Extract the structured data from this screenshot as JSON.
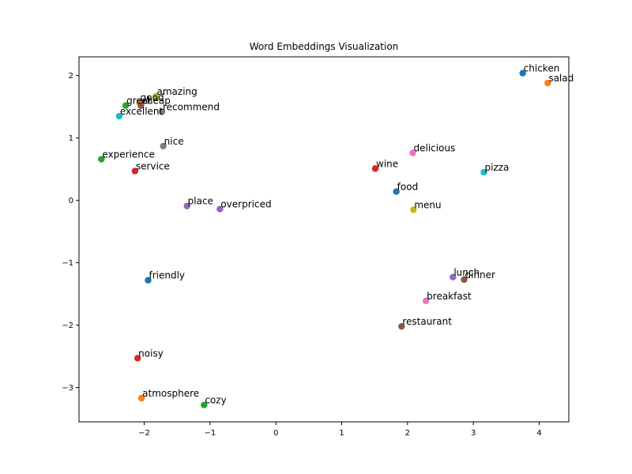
{
  "chart_data": {
    "type": "scatter",
    "title": "Word Embeddings Visualization",
    "xlabel": "",
    "ylabel": "",
    "xlim": [
      -2.99,
      4.45
    ],
    "ylim": [
      -3.55,
      2.3
    ],
    "xticks": [
      -2,
      -1,
      0,
      1,
      2,
      3,
      4
    ],
    "yticks": [
      -3,
      -2,
      -1,
      0,
      1,
      2
    ],
    "grid": false,
    "points": [
      {
        "label": "amazing",
        "x": -1.82,
        "y": 1.67,
        "color": "#bcbd22"
      },
      {
        "label": "good",
        "x": -2.07,
        "y": 1.57,
        "color": "#ff7f0e"
      },
      {
        "label": "cheap",
        "x": -2.05,
        "y": 1.52,
        "color": "#8c564b"
      },
      {
        "label": "great",
        "x": -2.28,
        "y": 1.52,
        "color": "#2ca02c"
      },
      {
        "label": "recommend",
        "x": -1.73,
        "y": 1.42,
        "color": "#7f7f7f"
      },
      {
        "label": "excellent",
        "x": -2.38,
        "y": 1.35,
        "color": "#17becf"
      },
      {
        "label": "nice",
        "x": -1.71,
        "y": 0.87,
        "color": "#7f7f7f"
      },
      {
        "label": "experience",
        "x": -2.65,
        "y": 0.66,
        "color": "#2ca02c"
      },
      {
        "label": "service",
        "x": -2.14,
        "y": 0.47,
        "color": "#d62728"
      },
      {
        "label": "place",
        "x": -1.35,
        "y": -0.09,
        "color": "#9467bd"
      },
      {
        "label": "overpriced",
        "x": -0.85,
        "y": -0.14,
        "color": "#9467bd"
      },
      {
        "label": "friendly",
        "x": -1.94,
        "y": -1.28,
        "color": "#1f77b4"
      },
      {
        "label": "noisy",
        "x": -2.1,
        "y": -2.53,
        "color": "#d62728"
      },
      {
        "label": "atmosphere",
        "x": -2.04,
        "y": -3.17,
        "color": "#ff7f0e"
      },
      {
        "label": "cozy",
        "x": -1.09,
        "y": -3.28,
        "color": "#2ca02c"
      },
      {
        "label": "chicken",
        "x": 3.75,
        "y": 2.04,
        "color": "#1f77b4"
      },
      {
        "label": "salad",
        "x": 4.13,
        "y": 1.88,
        "color": "#ff7f0e"
      },
      {
        "label": "delicious",
        "x": 2.08,
        "y": 0.76,
        "color": "#e377c2"
      },
      {
        "label": "wine",
        "x": 1.51,
        "y": 0.51,
        "color": "#d62728"
      },
      {
        "label": "pizza",
        "x": 3.16,
        "y": 0.45,
        "color": "#17becf"
      },
      {
        "label": "food",
        "x": 1.83,
        "y": 0.14,
        "color": "#1f77b4"
      },
      {
        "label": "menu",
        "x": 2.09,
        "y": -0.15,
        "color": "#bcbd22"
      },
      {
        "label": "lunch",
        "x": 2.69,
        "y": -1.23,
        "color": "#9467bd"
      },
      {
        "label": "dinner",
        "x": 2.86,
        "y": -1.27,
        "color": "#8c564b"
      },
      {
        "label": "breakfast",
        "x": 2.28,
        "y": -1.61,
        "color": "#e377c2"
      },
      {
        "label": "restaurant",
        "x": 1.91,
        "y": -2.02,
        "color": "#8c564b"
      }
    ]
  }
}
